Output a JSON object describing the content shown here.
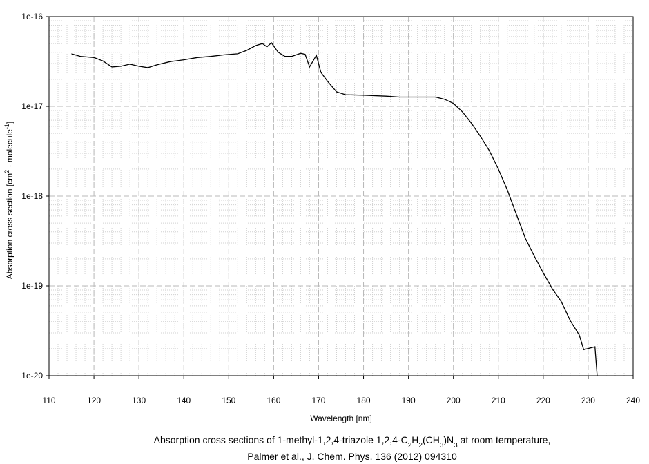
{
  "chart_data": {
    "type": "line",
    "xlabel": "Wavelength [nm]",
    "ylabel": [
      {
        "text": "Absorption cross section [cm"
      },
      {
        "text": "2",
        "sup": true
      },
      {
        "text": " · molecule"
      },
      {
        "text": "-1",
        "sup": true
      },
      {
        "text": "]"
      }
    ],
    "caption": [
      [
        {
          "text": "Absorption cross sections of 1-methyl-1,2,4-triazole 1,2,4-C"
        },
        {
          "text": "2",
          "sub": true
        },
        {
          "text": "H"
        },
        {
          "text": "2",
          "sub": true
        },
        {
          "text": "(CH"
        },
        {
          "text": "3",
          "sub": true
        },
        {
          "text": ")N"
        },
        {
          "text": "3",
          "sub": true
        },
        {
          "text": " at room temperature,"
        }
      ],
      [
        {
          "text": "Palmer et al., J. Chem. Phys. 136 (2012) 094310"
        }
      ]
    ],
    "log_y": true,
    "grid": true,
    "xlim": [
      110,
      240
    ],
    "xticks": [
      110,
      120,
      130,
      140,
      150,
      160,
      170,
      180,
      190,
      200,
      210,
      220,
      230,
      240
    ],
    "ylim": [
      1e-20,
      1e-16
    ],
    "yticks": [
      {
        "value": 1e-20,
        "label": "1e-20"
      },
      {
        "value": 1e-19,
        "label": "1e-19"
      },
      {
        "value": 1e-18,
        "label": "1e-18"
      },
      {
        "value": 1e-17,
        "label": "1e-17"
      },
      {
        "value": 1e-16,
        "label": "1e-16"
      }
    ],
    "series": [
      {
        "color": "#000000",
        "x": [
          115,
          117,
          120,
          122,
          124,
          126,
          128,
          130,
          132,
          134,
          137,
          140,
          143,
          146,
          149,
          152,
          154,
          156,
          157.5,
          158.5,
          159.5,
          161,
          162.5,
          164,
          166,
          167,
          168,
          169.5,
          170.5,
          172,
          174,
          176,
          180,
          185,
          188,
          192,
          196,
          198,
          200,
          202,
          204,
          206,
          208,
          210,
          212,
          214,
          216,
          218,
          220,
          222,
          224,
          226,
          228,
          229,
          231.5,
          232
        ],
        "values": [
          3.85e-17,
          3.6e-17,
          3.5e-17,
          3.2e-17,
          2.75e-17,
          2.8e-17,
          2.95e-17,
          2.8e-17,
          2.7e-17,
          2.9e-17,
          3.15e-17,
          3.3e-17,
          3.5e-17,
          3.6e-17,
          3.75e-17,
          3.85e-17,
          4.2e-17,
          4.75e-17,
          5e-17,
          4.6e-17,
          5.1e-17,
          4e-17,
          3.6e-17,
          3.6e-17,
          3.9e-17,
          3.8e-17,
          2.75e-17,
          3.7e-17,
          2.4e-17,
          1.9e-17,
          1.45e-17,
          1.35e-17,
          1.33e-17,
          1.3e-17,
          1.27e-17,
          1.27e-17,
          1.27e-17,
          1.2e-17,
          1.08e-17,
          8.7e-18,
          6.5e-18,
          4.65e-18,
          3.2e-18,
          2e-18,
          1.17e-18,
          6.3e-19,
          3.4e-19,
          2.15e-19,
          1.4e-19,
          9.3e-20,
          6.7e-20,
          4.1e-20,
          2.85e-20,
          1.95e-20,
          2.1e-20,
          1e-20
        ]
      }
    ]
  }
}
